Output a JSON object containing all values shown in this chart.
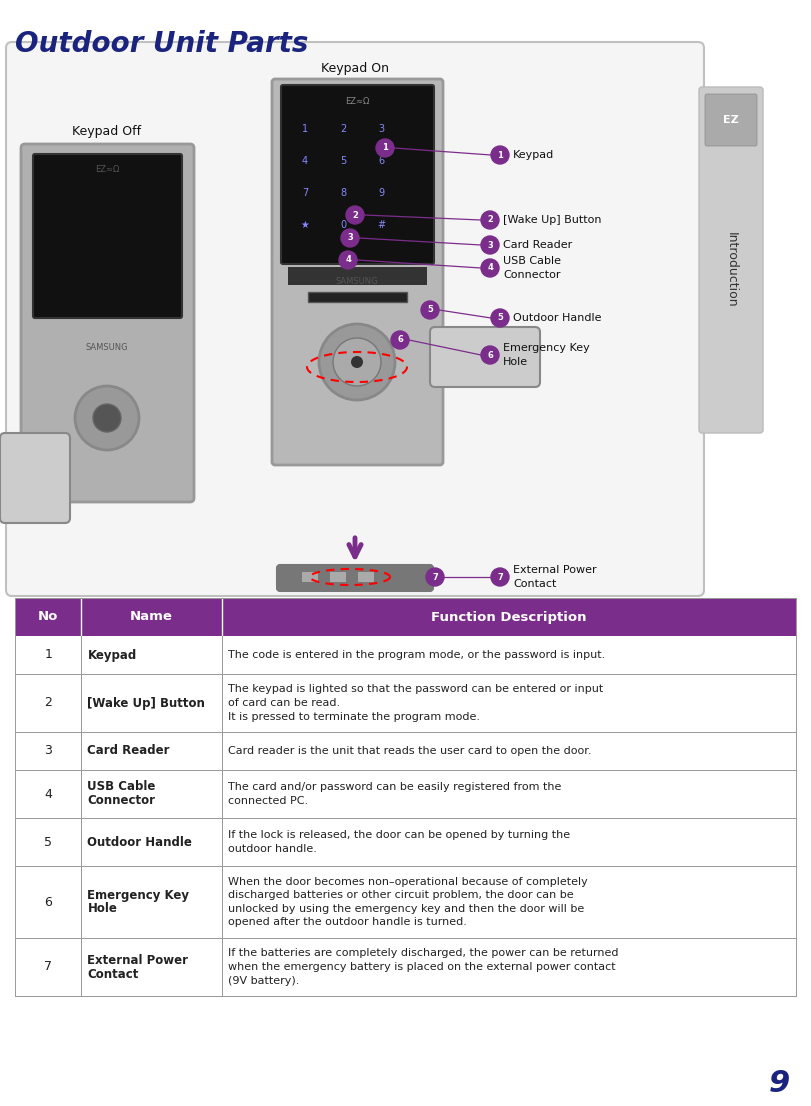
{
  "title": "Outdoor Unit Parts",
  "title_color": "#1a237e",
  "title_fontsize": 20,
  "page_bg": "#ffffff",
  "header_bg": "#7b2d8b",
  "header_text_color": "#ffffff",
  "header_no": "No",
  "header_name": "Name",
  "header_func": "Function Description",
  "table_rows": [
    {
      "no": "1",
      "name": "Keypad",
      "desc": "The code is entered in the program mode, or the password is input."
    },
    {
      "no": "2",
      "name": "[Wake Up] Button",
      "desc": "The keypad is lighted so that the password can be entered or input\nof card can be read.\nIt is pressed to terminate the program mode."
    },
    {
      "no": "3",
      "name": "Card Reader",
      "desc": "Card reader is the unit that reads the user card to open the door."
    },
    {
      "no": "4",
      "name": "USB Cable\nConnector",
      "desc": "The card and/or password can be easily registered from the\nconnected PC."
    },
    {
      "no": "5",
      "name": "Outdoor Handle",
      "desc": "If the lock is released, the door can be opened by turning the\noutdoor handle."
    },
    {
      "no": "6",
      "name": "Emergency Key\nHole",
      "desc": "When the door becomes non–operational because of completely\ndischarged batteries or other circuit problem, the door can be\nunlocked by using the emergency key and then the door will be\nopened after the outdoor handle is turned."
    },
    {
      "no": "7",
      "name": "External Power\nContact",
      "desc": "If the batteries are completely discharged, the power can be returned\nwhen the emergency battery is placed on the external power contact\n(9V battery)."
    }
  ],
  "keypad_on_label": "Keypad On",
  "keypad_off_label": "Keypad Off",
  "page_number": "9",
  "side_label": "Introduction",
  "bullet_color": "#7b2d8b",
  "line_color": "#7b2d8b",
  "name_bold_color": "#222222",
  "desc_color": "#222222",
  "no_color": "#222222",
  "grid_color": "#999999"
}
